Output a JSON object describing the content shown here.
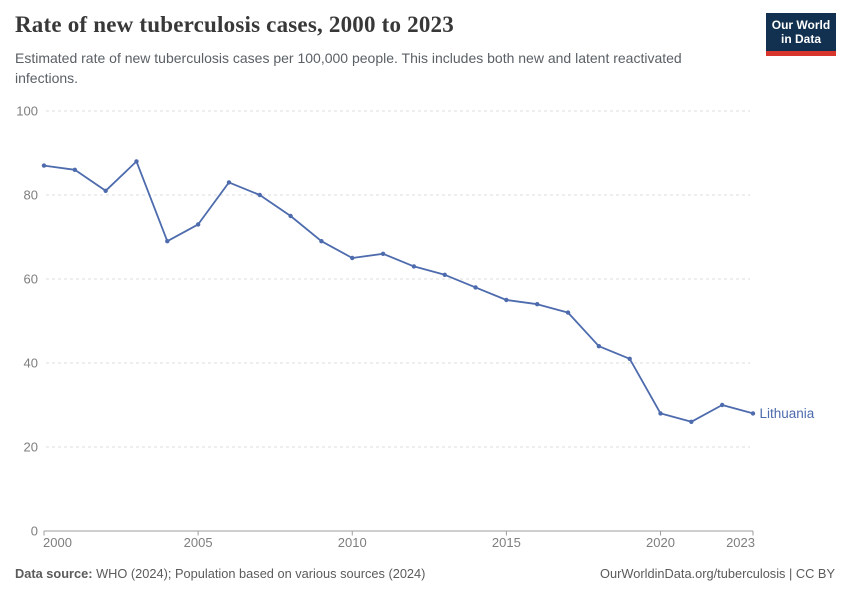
{
  "header": {
    "title": "Rate of new tuberculosis cases, 2000 to 2023",
    "subtitle": "Estimated rate of new tuberculosis cases per 100,000 people. This includes both new and latent reactivated infections.",
    "logo": {
      "line1": "Our World",
      "line2": "in Data"
    }
  },
  "chart_data": {
    "type": "line",
    "title": "Rate of new tuberculosis cases, 2000 to 2023",
    "x": [
      2000,
      2001,
      2002,
      2003,
      2004,
      2005,
      2006,
      2007,
      2008,
      2009,
      2010,
      2011,
      2012,
      2013,
      2014,
      2015,
      2016,
      2017,
      2018,
      2019,
      2020,
      2021,
      2022,
      2023
    ],
    "series": [
      {
        "name": "Lithuania",
        "color": "#4d6bad",
        "values": [
          87,
          86,
          81,
          88,
          69,
          73,
          83,
          80,
          75,
          69,
          65,
          66,
          63,
          61,
          58,
          55,
          54,
          52,
          44,
          41,
          28,
          26,
          30,
          28
        ]
      }
    ],
    "xlabel": "",
    "ylabel": "",
    "ylim": [
      0,
      100
    ],
    "y_ticks": [
      0,
      20,
      40,
      60,
      80,
      100
    ],
    "x_ticks": [
      2000,
      2005,
      2010,
      2015,
      2020,
      2023
    ],
    "grid": "horizontal-dashed",
    "legend_position": "label-at-line-end"
  },
  "colors": {
    "line": "#4d6bad",
    "grid": "#dcdcdc",
    "axis": "#9e9e9e",
    "tick_label": "#7e7e7e",
    "logo_bg": "#12304f",
    "logo_accent": "#d8352c"
  },
  "footer": {
    "datasource_label": "Data source:",
    "datasource_text": "WHO (2024); Population based on various sources (2024)",
    "link_text": "OurWorldinData.org/tuberculosis | CC BY"
  }
}
